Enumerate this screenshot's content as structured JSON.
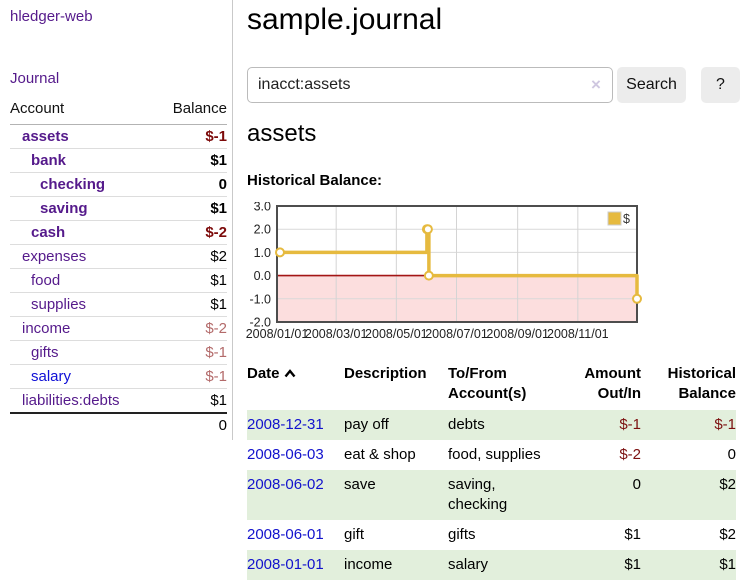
{
  "sidebar": {
    "app_title": "hledger-web",
    "journal_link": "Journal",
    "table": {
      "account_header": "Account",
      "balance_header": "Balance",
      "rows": [
        {
          "name": "assets",
          "balance": "$-1",
          "indent": 0
        },
        {
          "name": "bank",
          "balance": "$1",
          "indent": 1
        },
        {
          "name": "checking",
          "balance": "0",
          "indent": 2
        },
        {
          "name": "saving",
          "balance": "$1",
          "indent": 2
        },
        {
          "name": "cash",
          "balance": "$-2",
          "indent": 1
        },
        {
          "name": "expenses",
          "balance": "$2",
          "indent": 0
        },
        {
          "name": "food",
          "balance": "$1",
          "indent": 1
        },
        {
          "name": "supplies",
          "balance": "$1",
          "indent": 1
        },
        {
          "name": "income",
          "balance": "$-2",
          "indent": 0
        },
        {
          "name": "gifts",
          "balance": "$-1",
          "indent": 1
        },
        {
          "name": "salary",
          "balance": "$-1",
          "indent": 1
        },
        {
          "name": "liabilities:debts",
          "balance": "$1",
          "indent": 0
        }
      ],
      "total": "0"
    }
  },
  "main": {
    "title": "sample.journal",
    "search": {
      "value": "inacct:assets",
      "clear_icon": "×",
      "button_label": "Search",
      "help_label": "?"
    },
    "section_heading": "assets",
    "chart_label": "Historical Balance:",
    "table": {
      "headers": {
        "date": "Date",
        "date_sort": "ascending",
        "description": "Description",
        "accounts": "To/From Account(s)",
        "amount": "Amount Out/In",
        "balance": "Historical Balance"
      },
      "rows": [
        {
          "date": "2008-12-31",
          "description": "pay off",
          "accounts": "debts",
          "amount": "$-1",
          "balance": "$-1"
        },
        {
          "date": "2008-06-03",
          "description": "eat & shop",
          "accounts": "food, supplies",
          "amount": "$-2",
          "balance": "0"
        },
        {
          "date": "2008-06-02",
          "description": "save",
          "accounts": "saving, checking",
          "amount": "0",
          "balance": "$2"
        },
        {
          "date": "2008-06-01",
          "description": "gift",
          "accounts": "gifts",
          "amount": "$1",
          "balance": "$2"
        },
        {
          "date": "2008-01-01",
          "description": "income",
          "accounts": "salary",
          "amount": "$1",
          "balance": "$1"
        }
      ]
    }
  },
  "chart_data": {
    "type": "line",
    "step": true,
    "title": "Historical Balance",
    "legend": "$",
    "legend_position": "top-right",
    "grid": true,
    "x_range": [
      "2008-01-01",
      "2008-12-31"
    ],
    "y_range": [
      -2,
      3
    ],
    "series": [
      {
        "name": "$",
        "points": [
          [
            "2008-01-01",
            1
          ],
          [
            "2008-06-01",
            2
          ],
          [
            "2008-06-02",
            2
          ],
          [
            "2008-06-03",
            0
          ],
          [
            "2008-12-31",
            -1
          ]
        ]
      }
    ],
    "x_ticks": [
      {
        "date": "2008-01-01",
        "label": "2008/01/01"
      },
      {
        "date": "2008-03-01",
        "label": "2008/03/01"
      },
      {
        "date": "2008-05-01",
        "label": "2008/05/01"
      },
      {
        "date": "2008-07-01",
        "label": "2008/07/01"
      },
      {
        "date": "2008-09-01",
        "label": "2008/09/01"
      },
      {
        "date": "2008-11-01",
        "label": "2008/11/01"
      }
    ],
    "y_ticks": [
      {
        "value": 3,
        "label": "3.0"
      },
      {
        "value": 2,
        "label": "2.0"
      },
      {
        "value": 1,
        "label": "1.0"
      },
      {
        "value": 0,
        "label": "0.0"
      },
      {
        "value": -1,
        "label": "-1.0"
      },
      {
        "value": -2,
        "label": "-2.0"
      }
    ]
  },
  "colors": {
    "link_purple": "#551a8b",
    "link_blue": "#0f0fd6",
    "date_link_blue": "#1212cd",
    "negative_strong": "#7c0a0a",
    "negative_muted": "#b36a6a",
    "series_gold": "#e6ba3f",
    "negative_region_pink": "#fcdede",
    "zero_line_red": "#a31515",
    "row_stripe_green": "#e2efdc",
    "button_gray": "#ececec"
  }
}
